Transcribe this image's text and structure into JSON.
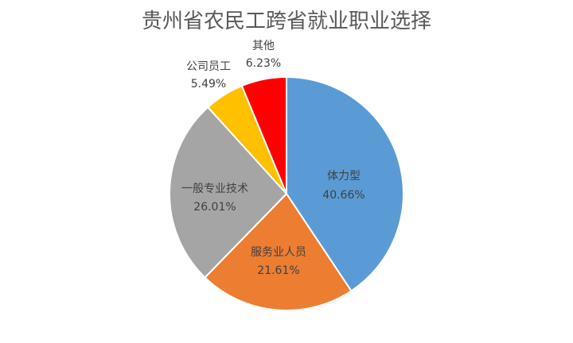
{
  "chart_data": {
    "type": "pie",
    "title": "贵州省农民工跨省就业职业选择",
    "slices": [
      {
        "label": "体力型",
        "value": 40.66,
        "value_label": "40.66%",
        "color": "#5B9BD5"
      },
      {
        "label": "服务业人员",
        "value": 21.61,
        "value_label": "21.61%",
        "color": "#ED7D31"
      },
      {
        "label": "一般专业技术",
        "value": 26.01,
        "value_label": "26.01%",
        "color": "#A5A5A5"
      },
      {
        "label": "公司员工",
        "value": 5.49,
        "value_label": "5.49%",
        "color": "#FFC000"
      },
      {
        "label": "其他",
        "value": 6.23,
        "value_label": "6.23%",
        "color": "#FF0000"
      }
    ]
  }
}
